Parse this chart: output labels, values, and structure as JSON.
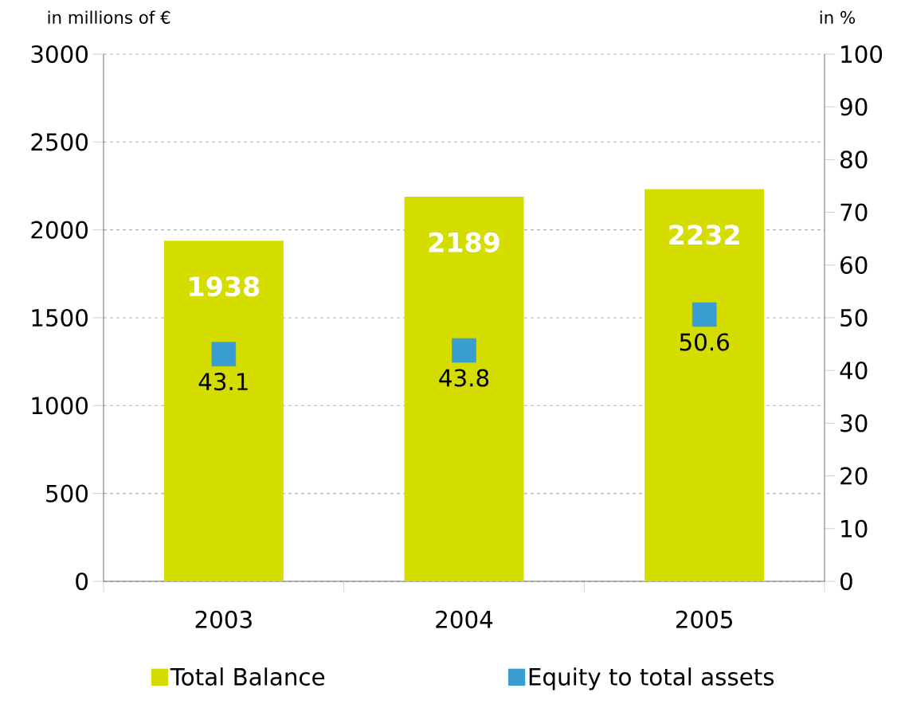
{
  "chart_data": {
    "type": "bar",
    "ylabel": "in millions of €",
    "y2label": "in %",
    "categories": [
      "2003",
      "2004",
      "2005"
    ],
    "series": [
      {
        "name": "Total Balance",
        "color": "#d4dc00",
        "values": [
          1938,
          2189,
          2232
        ]
      },
      {
        "name": "Equity to total assets",
        "type": "scatter",
        "axis": "y2",
        "marker": "square",
        "color": "#3a9dd0",
        "values": [
          43.1,
          43.8,
          50.6
        ]
      }
    ],
    "ylim": [
      0,
      3000
    ],
    "yticks": [
      0,
      500,
      1000,
      1500,
      2000,
      2500,
      3000
    ],
    "y2lim": [
      0,
      100
    ],
    "y2ticks": [
      0,
      10,
      20,
      30,
      40,
      50,
      60,
      70,
      80,
      90,
      100
    ],
    "grid": "y",
    "legend": "bottom",
    "data_labels": true
  }
}
